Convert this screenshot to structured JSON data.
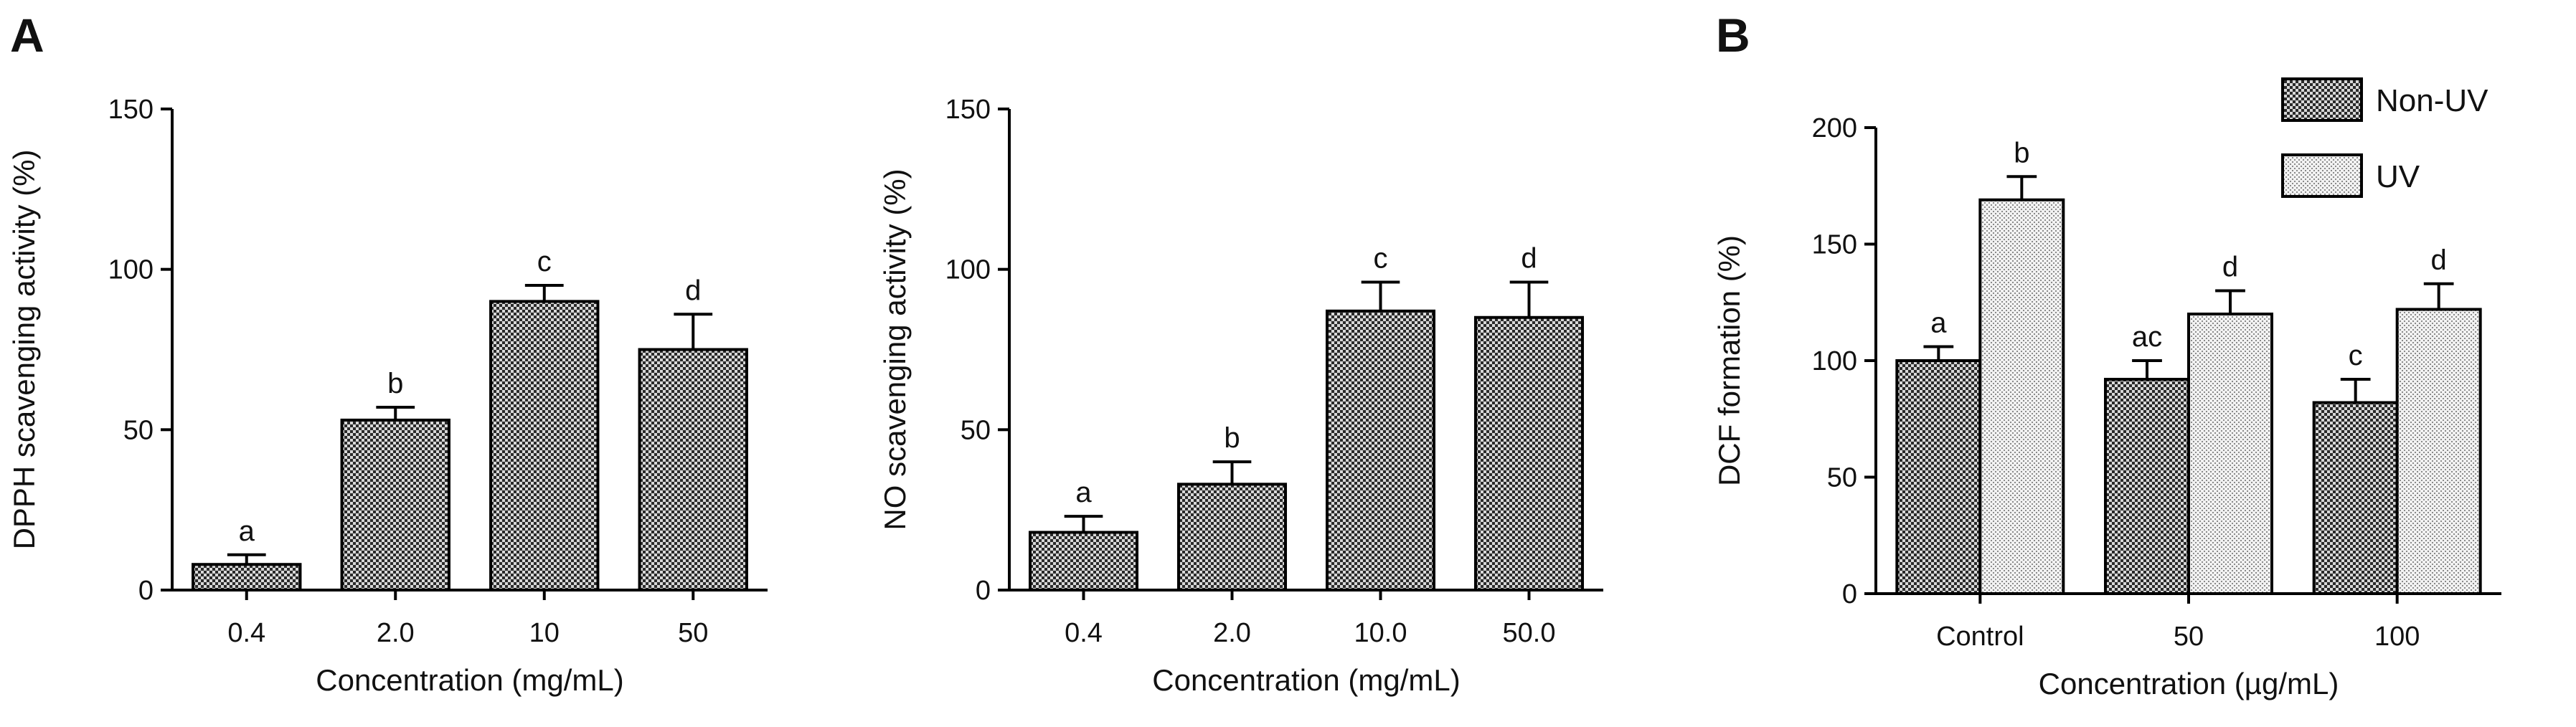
{
  "panel_labels": {
    "a": "A",
    "b": "B"
  },
  "colors": {
    "dark_pattern": "#3a3a3a",
    "light_pattern": "#c8c8c8",
    "axis": "#000000"
  },
  "chart_data": [
    {
      "type": "bar",
      "panel": "A",
      "ylabel": "DPPH scavenging activity (%)",
      "xlabel": "Concentration (mg/mL)",
      "ylim": [
        0,
        150
      ],
      "yticks": [
        0,
        50,
        100,
        150
      ],
      "categories": [
        "0.4",
        "2.0",
        "10",
        "50"
      ],
      "values": [
        8,
        53,
        90,
        75
      ],
      "errors": [
        3,
        4,
        5,
        11
      ],
      "significance": [
        "a",
        "b",
        "c",
        "d"
      ]
    },
    {
      "type": "bar",
      "panel": "A",
      "ylabel": "NO scavenging activity (%)",
      "xlabel": "Concentration (mg/mL)",
      "ylim": [
        0,
        150
      ],
      "yticks": [
        0,
        50,
        100,
        150
      ],
      "categories": [
        "0.4",
        "2.0",
        "10.0",
        "50.0"
      ],
      "values": [
        18,
        33,
        87,
        85
      ],
      "errors": [
        5,
        7,
        9,
        11
      ],
      "significance": [
        "a",
        "b",
        "c",
        "d"
      ]
    },
    {
      "type": "bar",
      "panel": "B",
      "ylabel": "DCF formation (%)",
      "xlabel": "Concentration (µg/mL)",
      "ylim": [
        0,
        200
      ],
      "yticks": [
        0,
        50,
        100,
        150,
        200
      ],
      "categories": [
        "Control",
        "50",
        "100"
      ],
      "legend_position": "top-right",
      "series": [
        {
          "name": "Non-UV",
          "pattern": "dark",
          "values": [
            100,
            92,
            82
          ],
          "errors": [
            6,
            8,
            10
          ],
          "significance": [
            "a",
            "ac",
            "c"
          ]
        },
        {
          "name": "UV",
          "pattern": "light",
          "values": [
            169,
            120,
            122
          ],
          "errors": [
            10,
            10,
            11
          ],
          "significance": [
            "b",
            "d",
            "d"
          ]
        }
      ]
    }
  ]
}
